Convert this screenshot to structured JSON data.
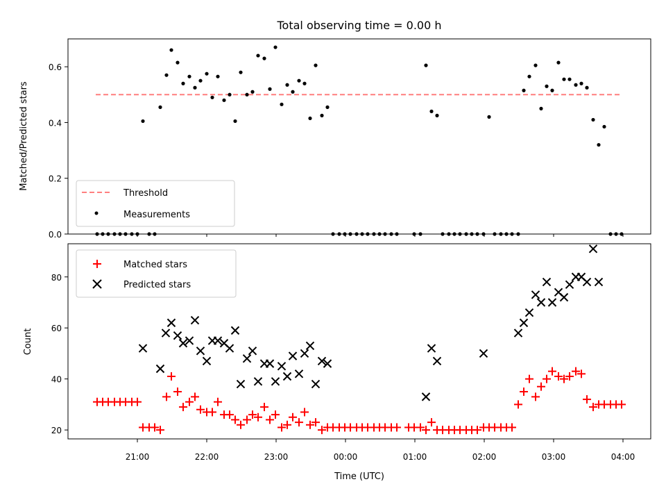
{
  "title": "Total observing time = 0.00 h",
  "chart_data": [
    {
      "type": "scatter",
      "ylabel": "Matched/Predicted stars",
      "xlabel": "",
      "ylim": [
        0.0,
        0.7
      ],
      "yticks": [
        0.0,
        0.2,
        0.4,
        0.6
      ],
      "xlim_hours": [
        20.0,
        28.4
      ],
      "threshold": {
        "name": "Threshold",
        "value": 0.5,
        "x_start": 20.4,
        "x_end": 27.97,
        "color": "#ff7f7f"
      },
      "series": [
        {
          "name": "Measurements",
          "color": "#000000",
          "x_hours": [
            20.42,
            20.5,
            20.58,
            20.67,
            20.75,
            20.83,
            20.92,
            21.0,
            21.08,
            21.17,
            21.25,
            21.33,
            21.42,
            21.49,
            21.58,
            21.66,
            21.75,
            21.83,
            21.91,
            22.0,
            22.08,
            22.16,
            22.25,
            22.33,
            22.41,
            22.49,
            22.58,
            22.66,
            22.74,
            22.83,
            22.91,
            22.99,
            23.08,
            23.16,
            23.24,
            23.33,
            23.41,
            23.49,
            23.57,
            23.66,
            23.74,
            23.82,
            23.91,
            23.99,
            24.07,
            24.16,
            24.24,
            24.32,
            24.41,
            24.49,
            24.57,
            24.66,
            24.74,
            24.99,
            25.08,
            25.16,
            25.24,
            25.32,
            25.4,
            25.49,
            25.57,
            25.65,
            25.74,
            25.82,
            25.9,
            25.99,
            26.07,
            26.15,
            26.24,
            26.32,
            26.4,
            26.49,
            26.57,
            26.65,
            26.74,
            26.82,
            26.9,
            26.98,
            27.07,
            27.15,
            27.23,
            27.32,
            27.4,
            27.48,
            27.57,
            27.65,
            27.73,
            27.82,
            27.9,
            27.98
          ],
          "y": [
            0,
            0,
            0,
            0,
            0,
            0,
            0,
            0,
            0.405,
            0,
            0,
            0.455,
            0.57,
            0.66,
            0.615,
            0.54,
            0.565,
            0.525,
            0.55,
            0.575,
            0.49,
            0.565,
            0.48,
            0.5,
            0.405,
            0.58,
            0.5,
            0.51,
            0.64,
            0.63,
            0.52,
            0.67,
            0.465,
            0.535,
            0.51,
            0.55,
            0.54,
            0.415,
            0.605,
            0.425,
            0.455,
            0,
            0,
            0,
            0,
            0,
            0,
            0,
            0,
            0,
            0,
            0,
            0,
            0,
            0,
            0.605,
            0.44,
            0.425,
            0,
            0,
            0,
            0,
            0,
            0,
            0,
            0,
            0.42,
            0,
            0,
            0,
            0,
            0,
            0.515,
            0.565,
            0.605,
            0.45,
            0.53,
            0.515,
            0.615,
            0.555,
            0.555,
            0.535,
            0.54,
            0.525,
            0.41,
            0.32,
            0.385,
            0,
            0,
            0
          ]
        }
      ]
    },
    {
      "type": "scatter",
      "ylabel": "Count",
      "xlabel": "Time (UTC)",
      "ylim": [
        16.5,
        93.0
      ],
      "yticks": [
        20,
        40,
        60,
        80
      ],
      "xlim_hours": [
        20.0,
        28.4
      ],
      "xticks_hours": [
        21,
        22,
        23,
        24,
        25,
        26,
        27,
        28
      ],
      "xtick_labels": [
        "21:00",
        "22:00",
        "23:00",
        "00:00",
        "01:00",
        "02:00",
        "03:00",
        "04:00"
      ],
      "series": [
        {
          "name": "Matched stars",
          "color": "#ff0000",
          "marker": "plus",
          "x_hours": [
            20.42,
            20.5,
            20.58,
            20.67,
            20.75,
            20.83,
            20.92,
            21.0,
            21.08,
            21.17,
            21.25,
            21.33,
            21.42,
            21.49,
            21.58,
            21.66,
            21.75,
            21.83,
            21.91,
            22.0,
            22.08,
            22.16,
            22.25,
            22.33,
            22.41,
            22.49,
            22.58,
            22.66,
            22.74,
            22.83,
            22.91,
            22.99,
            23.08,
            23.16,
            23.24,
            23.33,
            23.41,
            23.49,
            23.57,
            23.66,
            23.74,
            23.82,
            23.91,
            23.99,
            24.07,
            24.16,
            24.24,
            24.32,
            24.41,
            24.49,
            24.57,
            24.66,
            24.74,
            24.91,
            24.99,
            25.08,
            25.16,
            25.24,
            25.32,
            25.4,
            25.49,
            25.57,
            25.65,
            25.74,
            25.82,
            25.9,
            25.99,
            26.07,
            26.15,
            26.24,
            26.32,
            26.4,
            26.49,
            26.57,
            26.65,
            26.74,
            26.82,
            26.9,
            26.98,
            27.07,
            27.15,
            27.23,
            27.32,
            27.4,
            27.48,
            27.57,
            27.65,
            27.73,
            27.82,
            27.9,
            27.98
          ],
          "y": [
            31,
            31,
            31,
            31,
            31,
            31,
            31,
            31,
            21,
            21,
            21,
            20,
            33,
            41,
            35,
            29,
            31,
            33,
            28,
            27,
            27,
            31,
            26,
            26,
            24,
            22,
            24,
            26,
            25,
            29,
            24,
            26,
            21,
            22,
            25,
            23,
            27,
            22,
            23,
            20,
            21,
            21,
            21,
            21,
            21,
            21,
            21,
            21,
            21,
            21,
            21,
            21,
            21,
            21,
            21,
            21,
            20,
            23,
            20,
            20,
            20,
            20,
            20,
            20,
            20,
            20,
            21,
            21,
            21,
            21,
            21,
            21,
            30,
            35,
            40,
            33,
            37,
            40,
            43,
            41,
            40,
            41,
            43,
            42,
            32,
            29,
            30,
            30,
            30,
            30,
            30
          ]
        },
        {
          "name": "Predicted stars",
          "color": "#000000",
          "marker": "x",
          "x_hours": [
            21.08,
            21.33,
            21.41,
            21.49,
            21.58,
            21.66,
            21.75,
            21.83,
            21.91,
            22.0,
            22.08,
            22.16,
            22.25,
            22.33,
            22.41,
            22.49,
            22.58,
            22.66,
            22.74,
            22.83,
            22.91,
            22.99,
            23.08,
            23.16,
            23.24,
            23.33,
            23.41,
            23.49,
            23.57,
            23.66,
            23.74,
            25.16,
            25.24,
            25.32,
            25.99,
            26.49,
            26.57,
            26.65,
            26.74,
            26.82,
            26.9,
            26.98,
            27.07,
            27.15,
            27.23,
            27.32,
            27.4,
            27.48,
            27.57,
            27.65
          ],
          "y": [
            52,
            44,
            58,
            62,
            57,
            54,
            55,
            63,
            51,
            47,
            55,
            55,
            54,
            52,
            59,
            38,
            48,
            51,
            39,
            46,
            46,
            39,
            45,
            41,
            49,
            42,
            50,
            53,
            38,
            47,
            46,
            33,
            52,
            47,
            50,
            58,
            62,
            66,
            73,
            70,
            78,
            70,
            74,
            72,
            77,
            80,
            80,
            78,
            91,
            78
          ]
        }
      ]
    }
  ]
}
